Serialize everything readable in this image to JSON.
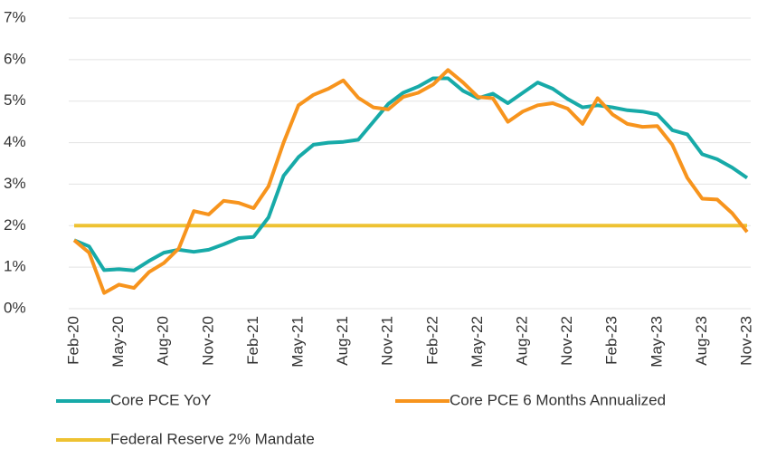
{
  "chart_data": {
    "type": "line",
    "categories": [
      "Feb-20",
      null,
      null,
      "May-20",
      null,
      null,
      "Aug-20",
      null,
      null,
      "Nov-20",
      null,
      null,
      "Feb-21",
      null,
      null,
      "May-21",
      null,
      null,
      "Aug-21",
      null,
      null,
      "Nov-21",
      null,
      null,
      "Feb-22",
      null,
      null,
      "May-22",
      null,
      null,
      "Aug-22",
      null,
      null,
      "Nov-22",
      null,
      null,
      "Feb-23",
      null,
      null,
      "May-23",
      null,
      null,
      "Aug-23",
      null,
      null,
      "Nov-23"
    ],
    "series": [
      {
        "name": "Core PCE YoY",
        "color": "#17aaa8",
        "values": [
          1.65,
          1.5,
          0.93,
          0.95,
          0.92,
          1.15,
          1.35,
          1.42,
          1.37,
          1.42,
          1.55,
          1.7,
          1.73,
          2.2,
          3.2,
          3.65,
          3.95,
          4.0,
          4.02,
          4.07,
          4.5,
          4.93,
          5.2,
          5.35,
          5.55,
          5.55,
          5.25,
          5.07,
          5.18,
          4.95,
          5.2,
          5.45,
          5.3,
          5.05,
          4.85,
          4.9,
          4.85,
          4.78,
          4.75,
          4.68,
          4.3,
          4.2,
          3.72,
          3.6,
          3.4,
          3.15
        ]
      },
      {
        "name": "Core PCE 6 Months Annualized",
        "color": "#f7941d",
        "values": [
          1.65,
          1.35,
          0.38,
          0.58,
          0.5,
          0.88,
          1.1,
          1.45,
          2.35,
          2.27,
          2.6,
          2.55,
          2.42,
          2.95,
          4.0,
          4.9,
          5.15,
          5.3,
          5.5,
          5.08,
          4.85,
          4.8,
          5.1,
          5.2,
          5.4,
          5.75,
          5.45,
          5.1,
          5.07,
          4.5,
          4.75,
          4.9,
          4.95,
          4.82,
          4.45,
          5.07,
          4.68,
          4.45,
          4.38,
          4.4,
          3.95,
          3.15,
          2.65,
          2.63,
          2.3,
          1.85
        ]
      },
      {
        "name": "Federal Reserve 2% Mandate",
        "color": "#eec232",
        "values": [
          2,
          2,
          2,
          2,
          2,
          2,
          2,
          2,
          2,
          2,
          2,
          2,
          2,
          2,
          2,
          2,
          2,
          2,
          2,
          2,
          2,
          2,
          2,
          2,
          2,
          2,
          2,
          2,
          2,
          2,
          2,
          2,
          2,
          2,
          2,
          2,
          2,
          2,
          2,
          2,
          2,
          2,
          2,
          2,
          2,
          2
        ]
      }
    ],
    "ylim": [
      0,
      7
    ],
    "yticks": [
      {
        "value": 0,
        "label": "0%"
      },
      {
        "value": 1,
        "label": "1%"
      },
      {
        "value": 2,
        "label": "2%"
      },
      {
        "value": 3,
        "label": "3%"
      },
      {
        "value": 4,
        "label": "4%"
      },
      {
        "value": 5,
        "label": "5%"
      },
      {
        "value": 6,
        "label": "6%"
      },
      {
        "value": 7,
        "label": "7%"
      }
    ],
    "grid": true,
    "legend": "bottom"
  }
}
